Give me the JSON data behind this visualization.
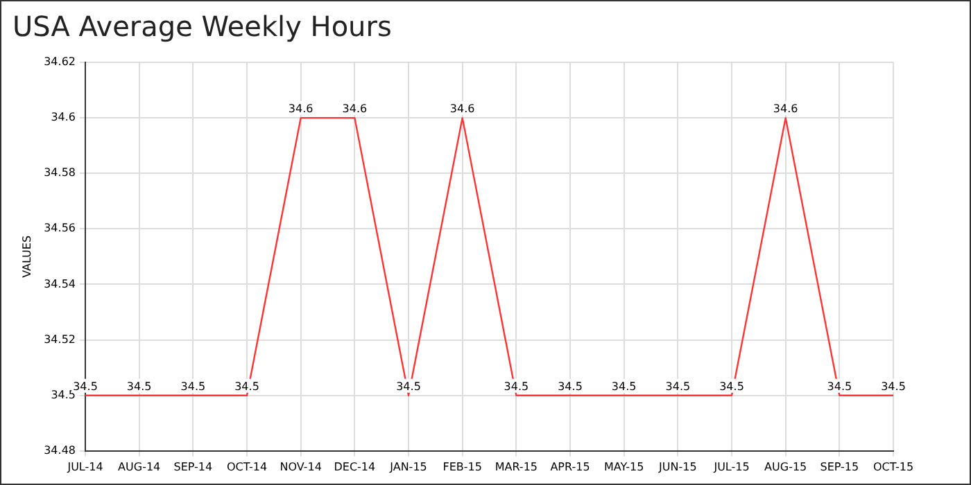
{
  "chart_data": {
    "type": "line",
    "title": "USA Average Weekly Hours",
    "ylabel": "VALUES",
    "categories": [
      "JUL-14",
      "AUG-14",
      "SEP-14",
      "OCT-14",
      "NOV-14",
      "DEC-14",
      "JAN-15",
      "FEB-15",
      "MAR-15",
      "APR-15",
      "MAY-15",
      "JUN-15",
      "JUL-15",
      "AUG-15",
      "SEP-15",
      "OCT-15"
    ],
    "values": [
      34.5,
      34.5,
      34.5,
      34.5,
      34.6,
      34.6,
      34.5,
      34.6,
      34.5,
      34.5,
      34.5,
      34.5,
      34.5,
      34.6,
      34.5,
      34.5
    ],
    "color": "#ff3333",
    "ylim": [
      34.48,
      34.62
    ],
    "yticks": [
      34.48,
      34.5,
      34.52,
      34.54,
      34.56,
      34.58,
      34.6,
      34.62
    ],
    "grid": true,
    "data_labels": true,
    "marker": "none",
    "line_style": "solid",
    "legend": false
  }
}
